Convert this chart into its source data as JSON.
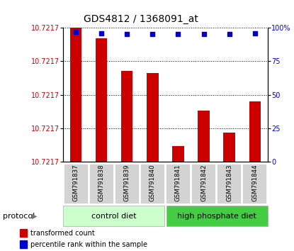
{
  "title": "GDS4812 / 1368091_at",
  "samples": [
    "GSM791837",
    "GSM791838",
    "GSM791839",
    "GSM791840",
    "GSM791841",
    "GSM791842",
    "GSM791843",
    "GSM791844"
  ],
  "bar_heights_norm": [
    1.0,
    0.92,
    0.68,
    0.66,
    0.12,
    0.38,
    0.22,
    0.45
  ],
  "percentile_norm": [
    0.97,
    0.96,
    0.95,
    0.95,
    0.95,
    0.95,
    0.95,
    0.96
  ],
  "ytick_labels": [
    "10.7217",
    "10.7217",
    "10.7217",
    "10.7217",
    "10.7217"
  ],
  "ytick_positions": [
    0.0,
    0.25,
    0.5,
    0.75,
    1.0
  ],
  "right_ytick_labels": [
    "0",
    "25",
    "50",
    "75",
    "100%"
  ],
  "group1_label": "control diet",
  "group2_label": "high phosphate diet",
  "bar_color": "#cc0000",
  "dot_color": "#0000cc",
  "group1_bg": "#ccffcc",
  "group2_bg": "#44cc44",
  "protocol_label": "protocol",
  "legend_bar_label": "transformed count",
  "legend_dot_label": "percentile rank within the sample",
  "title_fontsize": 10,
  "tick_fontsize": 7,
  "label_fontsize": 8,
  "dot_size": 22
}
